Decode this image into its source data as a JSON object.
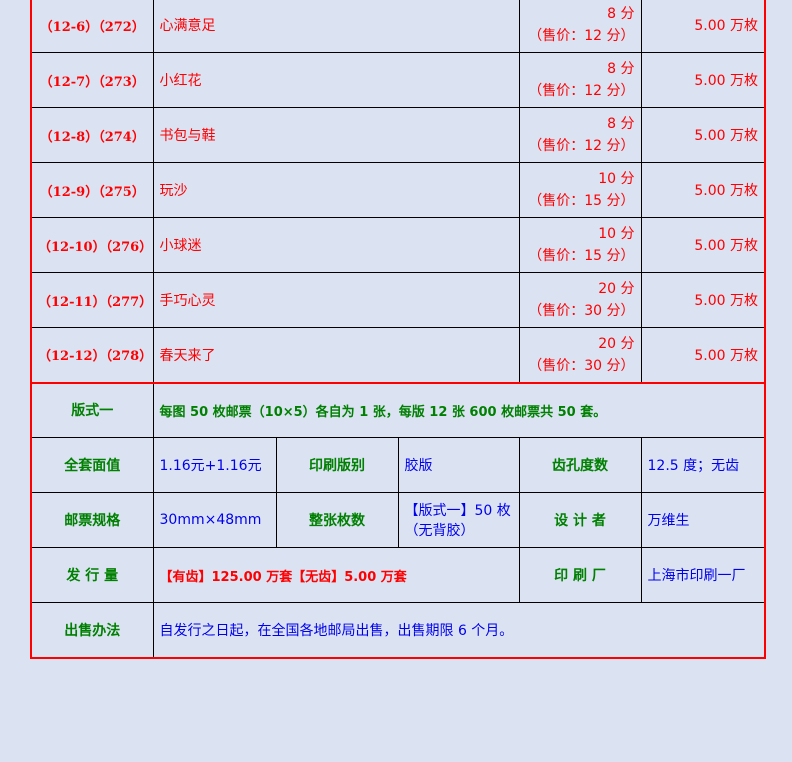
{
  "stamps": [
    {
      "code": "（12-6）（272）",
      "name": "心满意足",
      "face": "8 分",
      "sale": "（售价：12 分）",
      "qty": "5.00 万枚"
    },
    {
      "code": "（12-7）（273）",
      "name": "小红花",
      "face": "8 分",
      "sale": "（售价：12 分）",
      "qty": "5.00 万枚"
    },
    {
      "code": "（12-8）（274）",
      "name": "书包与鞋",
      "face": "8 分",
      "sale": "（售价：12 分）",
      "qty": "5.00 万枚"
    },
    {
      "code": "（12-9）（275）",
      "name": "玩沙",
      "face": "10 分",
      "sale": "（售价：15 分）",
      "qty": "5.00 万枚"
    },
    {
      "code": "（12-10）（276）",
      "name": "小球迷",
      "face": "10 分",
      "sale": "（售价：15 分）",
      "qty": "5.00 万枚"
    },
    {
      "code": "（12-11）（277）",
      "name": "手巧心灵",
      "face": "20 分",
      "sale": "（售价：30 分）",
      "qty": "5.00 万枚"
    },
    {
      "code": "（12-12）（278）",
      "name": "春天来了",
      "face": "20 分",
      "sale": "（售价：30 分）",
      "qty": "5.00 万枚"
    }
  ],
  "info": {
    "format_label": "版式一",
    "format_value": "每图 50 枚邮票（10×5）各自为 1 张，每版 12 张 600 枚邮票共 50 套。",
    "face_label": "全套面值",
    "face_value": "1.16元+1.16元",
    "print_type_label": "印刷版别",
    "print_type_value": "胶版",
    "perf_label": "齿孔度数",
    "perf_value": "12.5 度；无齿",
    "size_label": "邮票规格",
    "size_value": "30mm×48mm",
    "sheet_label": "整张枚数",
    "sheet_value_1": "【版式一】50 枚",
    "sheet_value_2": "（无背胶）",
    "designer_label": "设 计 者",
    "designer_value": "万维生",
    "issue_label": "发 行 量",
    "issue_value": "【有齿】125.00 万套【无齿】5.00 万套",
    "printer_label": "印 刷 厂",
    "printer_value": "上海市印刷一厂",
    "sale_label": "出售办法",
    "sale_value": "自发行之日起，在全国各地邮局出售，出售期限 6 个月。"
  },
  "colors": {
    "background": "#dbe3f3",
    "label": "#008000",
    "value": "#0000ee",
    "highlight": "#ff0000"
  }
}
